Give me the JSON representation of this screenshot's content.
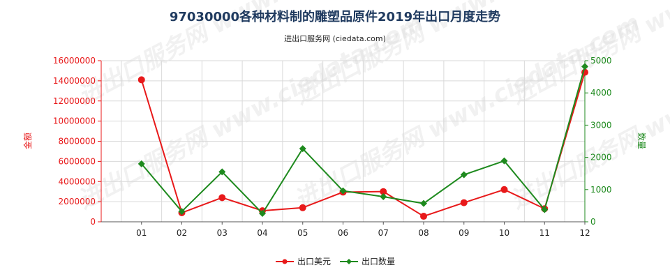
{
  "chart_data": {
    "type": "line",
    "title": "97030000各种材料制的雕塑品原件2019年出口月度走势",
    "subtitle": "进出口服务网 (ciedata.com)",
    "watermark": "进出口服务网 www.ciedata.com",
    "categories": [
      "01",
      "02",
      "03",
      "04",
      "05",
      "06",
      "07",
      "08",
      "09",
      "10",
      "11",
      "12"
    ],
    "y_left": {
      "label": "金额",
      "ticks": [
        "16000000",
        "14000000",
        "12000000",
        "10000000",
        "8000000",
        "6000000",
        "4000000",
        "2000000",
        "0"
      ],
      "range": [
        0,
        16000000
      ],
      "color": "#e8191a"
    },
    "y_right": {
      "label": "数量",
      "ticks": [
        "5000",
        "4000",
        "3000",
        "2000",
        "1000",
        "0"
      ],
      "range": [
        0,
        5000
      ],
      "color": "#1e8a1e"
    },
    "grid": true,
    "legend_position": "bottom",
    "series": [
      {
        "name": "出口美元",
        "axis": "left",
        "color": "#e8191a",
        "marker": "circle",
        "values": [
          14100000,
          900000,
          2400000,
          1100000,
          1400000,
          2950000,
          3000000,
          550000,
          1900000,
          3200000,
          1300000,
          14850000
        ]
      },
      {
        "name": "出口数量",
        "axis": "right",
        "color": "#1e8a1e",
        "marker": "diamond",
        "values": [
          1800,
          320,
          1550,
          260,
          2270,
          960,
          780,
          570,
          1460,
          1890,
          380,
          4820
        ]
      }
    ]
  }
}
